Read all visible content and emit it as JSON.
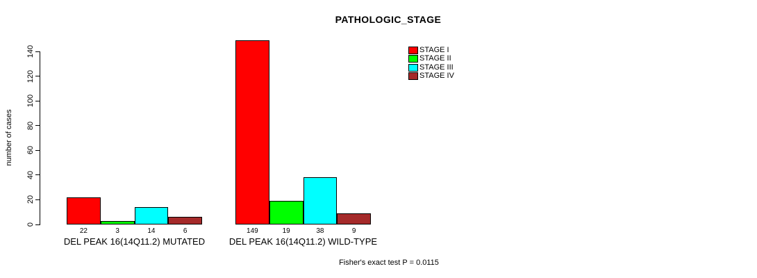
{
  "title": "PATHOLOGIC_STAGE",
  "footer_note": "Fisher's exact test P = 0.0115",
  "chart_data": {
    "type": "bar",
    "title": "PATHOLOGIC_STAGE",
    "xlabel": "",
    "ylabel": "number of cases",
    "ylim": [
      0,
      149
    ],
    "yticks": [
      0,
      20,
      40,
      60,
      80,
      100,
      120,
      140
    ],
    "grid": false,
    "legend_position": "top-right",
    "categories": [
      "DEL PEAK 16(14Q11.2) MUTATED",
      "DEL PEAK 16(14Q11.2) WILD-TYPE"
    ],
    "series": [
      {
        "name": "STAGE I",
        "color": "#FF0000",
        "values": [
          22,
          149
        ]
      },
      {
        "name": "STAGE II",
        "color": "#00FF00",
        "values": [
          3,
          19
        ]
      },
      {
        "name": "STAGE III",
        "color": "#00FFFF",
        "values": [
          14,
          38
        ]
      },
      {
        "name": "STAGE IV",
        "color": "#A52A2A",
        "values": [
          6,
          9
        ]
      }
    ],
    "bar_value_labels": [
      [
        "22",
        "3",
        "14",
        "6"
      ],
      [
        "149",
        "19",
        "38",
        "9"
      ]
    ],
    "annotation": "Fisher's exact test P = 0.0115"
  }
}
